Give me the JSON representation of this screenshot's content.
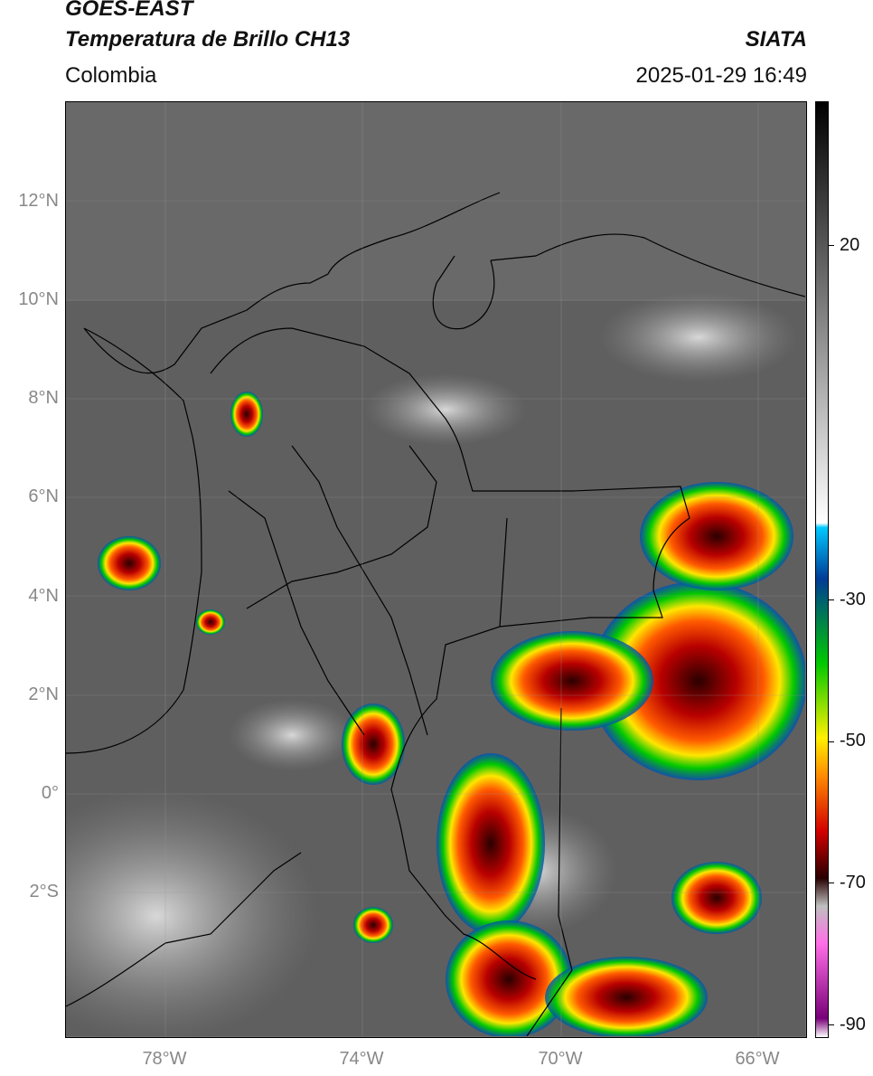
{
  "header": {
    "title_line1": "GOES-EAST",
    "title_line2": "Temperatura de Brillo CH13",
    "region": "Colombia",
    "organization": "SIATA",
    "timestamp": "2025-01-29 16:49"
  },
  "axes": {
    "lat_labels": [
      "12°N",
      "10°N",
      "8°N",
      "6°N",
      "4°N",
      "2°N",
      "0°",
      "2°S"
    ],
    "lon_labels": [
      "78°W",
      "74°W",
      "70°W",
      "66°W"
    ]
  },
  "colorbar": {
    "tick_labels": [
      "20",
      "-30",
      "-50",
      "-70",
      "-90"
    ],
    "colors": [
      "#000000",
      "#ffffff",
      "#00c8ff",
      "#003c96",
      "#00c800",
      "#fff000",
      "#ff8c00",
      "#d20000",
      "#280000",
      "#bfbfbf",
      "#ff6ee6",
      "#780078",
      "#ffffff"
    ]
  }
}
